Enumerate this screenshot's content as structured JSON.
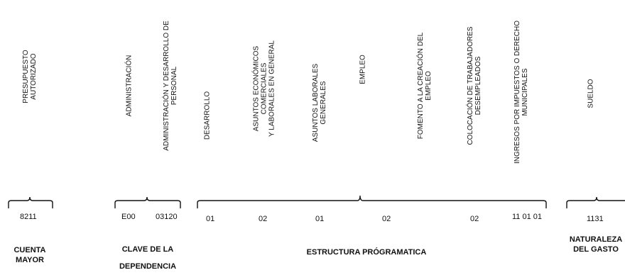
{
  "headers": {
    "presupuesto": "PRESUPUESTO\nAUTORIZADO",
    "administracion": "ADMINISTRACIÓN",
    "admin_desarrollo": "ADMINISTRACIÓN Y DESARROLLO DE\nPERSONAL",
    "desarrollo": "DESARROLLO",
    "asuntos_economicos": "ASUNTOS ECONÓMICOS\nCOMERCIALES\nY LABORALES EN GENERAL",
    "asuntos_laborales": "ASUNTOS LABORALES\nGENERALES",
    "empleo": "EMPLEO",
    "fomento": "FOMENTO A LA CREACIÓN DEL\nEMPLEO",
    "colocacion": "COLOCACIÓN DE TRABAJADORES\nDESEMPLEADOS",
    "ingresos": "INGRESOS POR IMPUESTOS O DERECHO\nMUNICIPALES",
    "sueldo": "SUELDO"
  },
  "codes": {
    "c8211": "8211",
    "e00": "E00",
    "c03120": "03120",
    "c01a": "01",
    "c02a": "02",
    "c01b": "01",
    "c02b": "02",
    "c02c": "02",
    "c110101": "11 01 01",
    "c1131": "1131"
  },
  "labels": {
    "cuenta": "CUENTA\nMAYOR",
    "clave": "CLAVE DE LA\nDEPENDENCIA",
    "estructura": "ESTRUCTURA PRÓGRAMATICA",
    "naturaleza": "NATURALEZA\nDEL GASTO"
  }
}
